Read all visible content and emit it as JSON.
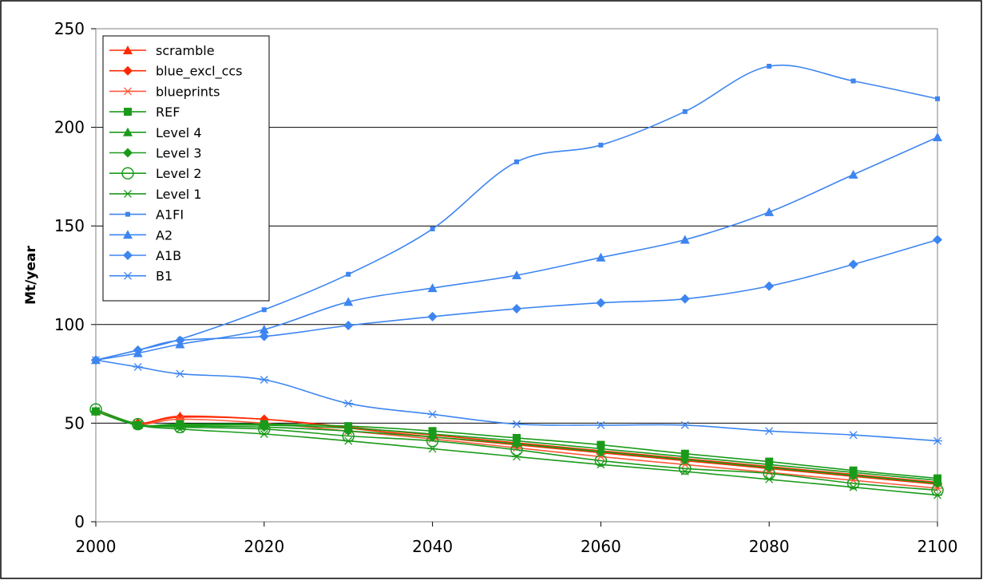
{
  "chart_data": {
    "type": "line",
    "title": "",
    "xlabel": "",
    "ylabel": "Mt/year",
    "xlim": [
      2000,
      2100
    ],
    "ylim": [
      0,
      250
    ],
    "x_ticks": [
      "2000",
      "2020",
      "2040",
      "2060",
      "2080",
      "2100"
    ],
    "y_ticks": [
      "0",
      "50",
      "100",
      "150",
      "200",
      "250"
    ],
    "grid": "horizontal",
    "legend_position": "top-left",
    "series": [
      {
        "name": "scramble",
        "color": "#ff2a00",
        "marker": "triangle",
        "x": [
          2000,
          2005,
          2010,
          2020,
          2030,
          2040,
          2050,
          2060,
          2070,
          2080,
          2090,
          2100
        ],
        "y": [
          56,
          50,
          53.5,
          52,
          48,
          44,
          40,
          36,
          32,
          28,
          24,
          20
        ]
      },
      {
        "name": "blue_excl_ccs",
        "color": "#ff2a00",
        "marker": "diamond",
        "x": [
          2000,
          2005,
          2010,
          2020,
          2030,
          2040,
          2050,
          2060,
          2070,
          2080,
          2090,
          2100
        ],
        "y": [
          56,
          50,
          53,
          52,
          47.5,
          43,
          39,
          35,
          31,
          27,
          23,
          19
        ]
      },
      {
        "name": "blueprints",
        "color": "#ff5a3c",
        "marker": "star",
        "x": [
          2000,
          2005,
          2010,
          2020,
          2030,
          2040,
          2050,
          2060,
          2070,
          2080,
          2090,
          2100
        ],
        "y": [
          56,
          49.5,
          52,
          50,
          46,
          42,
          37.5,
          33,
          29,
          25,
          21,
          17
        ]
      },
      {
        "name": "REF",
        "color": "#1a9a1a",
        "marker": "square",
        "x": [
          2000,
          2005,
          2010,
          2020,
          2030,
          2040,
          2050,
          2060,
          2070,
          2080,
          2090,
          2100
        ],
        "y": [
          56,
          49,
          49.5,
          49.5,
          48.5,
          46,
          42.5,
          39,
          34.5,
          30.5,
          26,
          22
        ]
      },
      {
        "name": "Level 4",
        "color": "#1a9a1a",
        "marker": "triangle",
        "x": [
          2000,
          2005,
          2010,
          2020,
          2030,
          2040,
          2050,
          2060,
          2070,
          2080,
          2090,
          2100
        ],
        "y": [
          56,
          49,
          49,
          49,
          47.5,
          44.5,
          41,
          37,
          33,
          29,
          25,
          21
        ]
      },
      {
        "name": "Level 3",
        "color": "#1a9a1a",
        "marker": "diamond",
        "x": [
          2000,
          2005,
          2010,
          2020,
          2030,
          2040,
          2050,
          2060,
          2070,
          2080,
          2090,
          2100
        ],
        "y": [
          56,
          49,
          48.5,
          48,
          46,
          43,
          39.5,
          35.5,
          31.5,
          27.5,
          23.5,
          19.5
        ]
      },
      {
        "name": "Level 2",
        "color": "#1a9a1a",
        "marker": "circle",
        "x": [
          2000,
          2005,
          2010,
          2020,
          2030,
          2040,
          2050,
          2060,
          2070,
          2080,
          2090,
          2100
        ],
        "y": [
          57,
          49.5,
          48,
          47,
          43.5,
          41,
          36.5,
          31,
          27,
          24.5,
          19.5,
          16
        ]
      },
      {
        "name": "Level 1",
        "color": "#1a9a1a",
        "marker": "star",
        "x": [
          2000,
          2005,
          2010,
          2020,
          2030,
          2040,
          2050,
          2060,
          2070,
          2080,
          2090,
          2100
        ],
        "y": [
          56,
          49,
          47,
          44.5,
          41,
          37,
          33,
          29,
          25.5,
          21.5,
          17.5,
          13.5
        ]
      },
      {
        "name": "A1FI",
        "color": "#3d85f0",
        "marker": "small-square",
        "x": [
          2000,
          2005,
          2010,
          2020,
          2030,
          2040,
          2050,
          2060,
          2070,
          2080,
          2090,
          2100
        ],
        "y": [
          82,
          87,
          92.5,
          107.5,
          125.5,
          148.5,
          182.5,
          191,
          208,
          231,
          223.5,
          214.5
        ]
      },
      {
        "name": "A2",
        "color": "#3d85f0",
        "marker": "triangle",
        "x": [
          2000,
          2005,
          2010,
          2020,
          2030,
          2040,
          2050,
          2060,
          2070,
          2080,
          2090,
          2100
        ],
        "y": [
          82,
          85.5,
          90,
          97.5,
          111.5,
          118.5,
          125,
          134,
          143,
          157,
          176,
          195
        ]
      },
      {
        "name": "A1B",
        "color": "#3d85f0",
        "marker": "diamond",
        "x": [
          2000,
          2005,
          2010,
          2020,
          2030,
          2040,
          2050,
          2060,
          2070,
          2080,
          2090,
          2100
        ],
        "y": [
          82,
          87,
          92,
          94,
          99.5,
          104,
          108,
          111,
          113,
          119.5,
          130.5,
          143
        ]
      },
      {
        "name": "B1",
        "color": "#3d85f0",
        "marker": "star",
        "x": [
          2000,
          2005,
          2010,
          2020,
          2030,
          2040,
          2050,
          2060,
          2070,
          2080,
          2090,
          2100
        ],
        "y": [
          82,
          78.5,
          75,
          72,
          60,
          54.5,
          49.5,
          49,
          49,
          46,
          44,
          41
        ]
      }
    ]
  }
}
